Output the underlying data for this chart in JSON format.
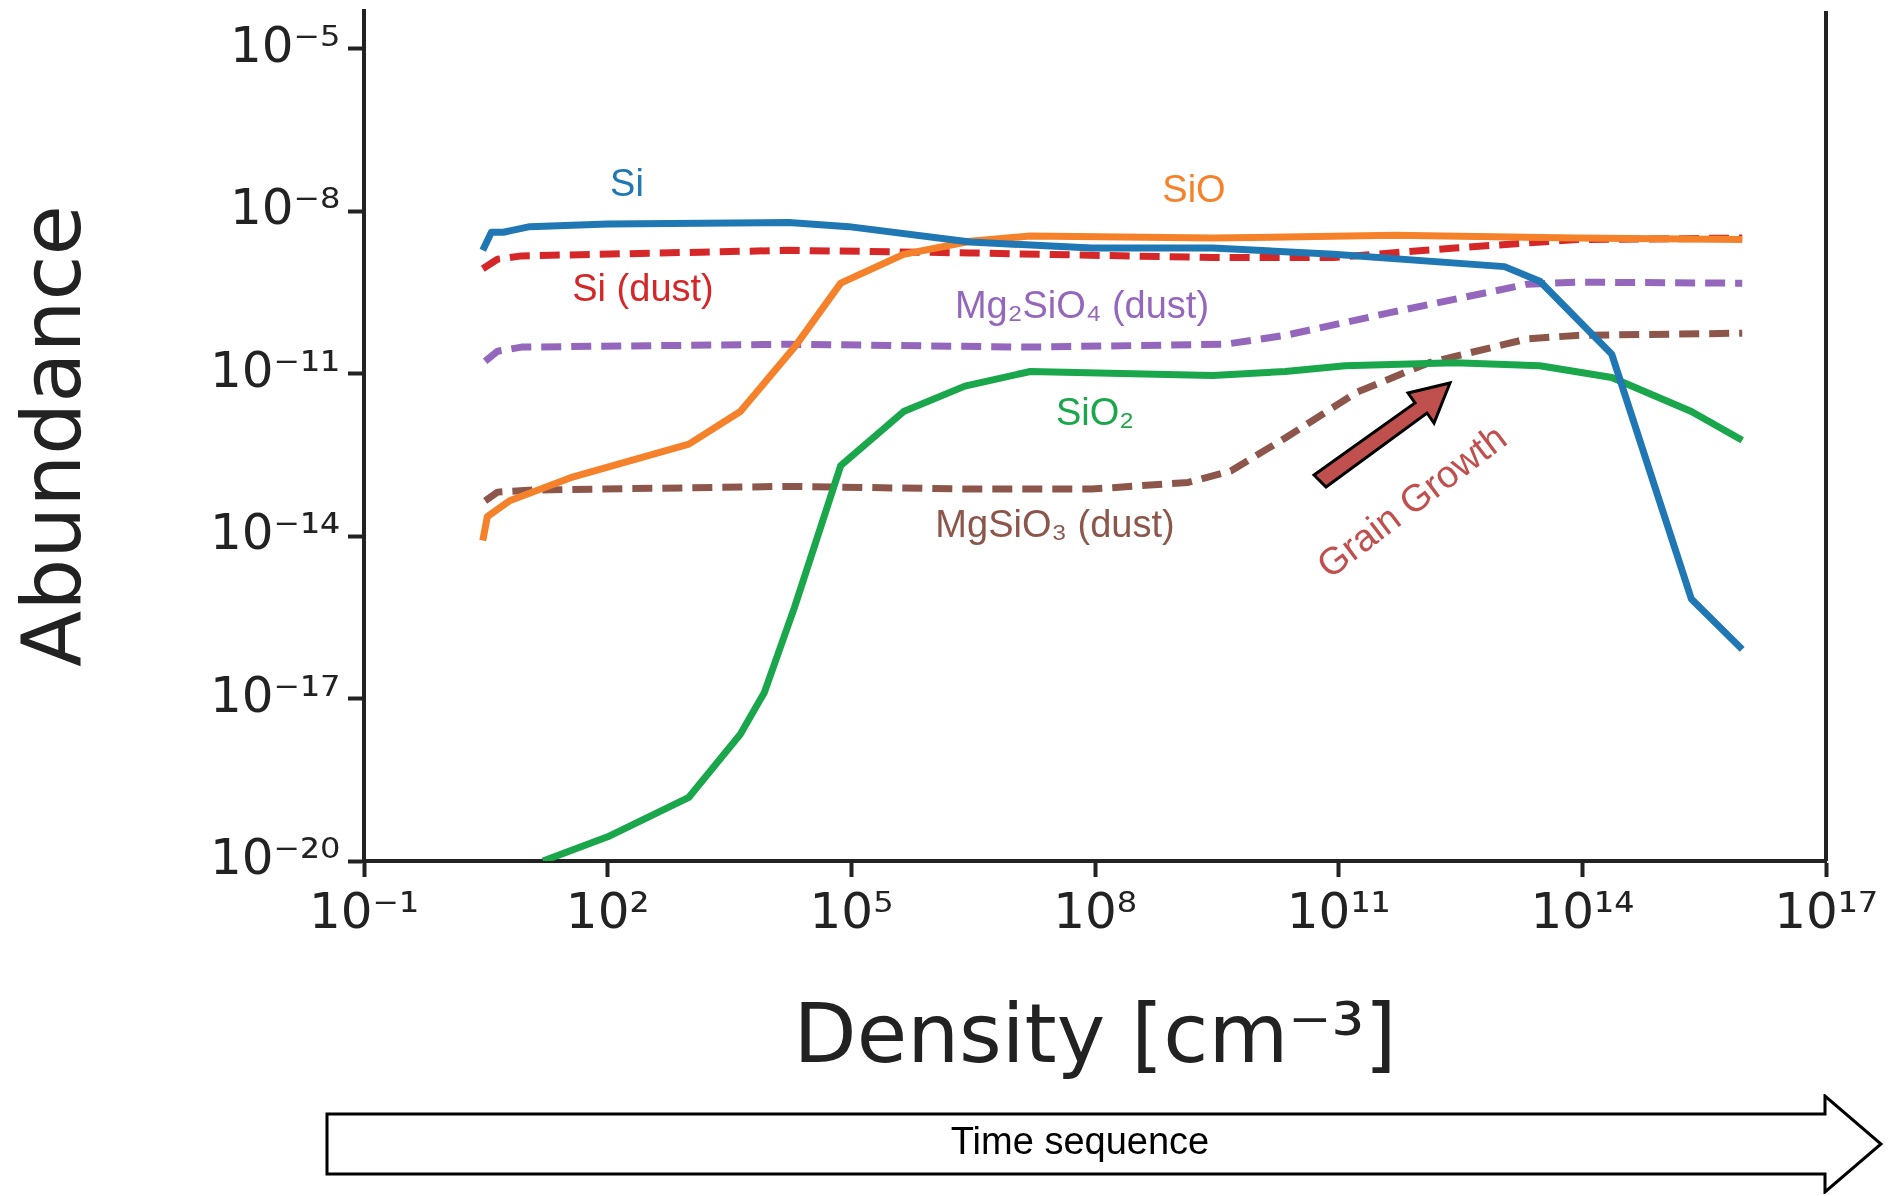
{
  "chart_data": {
    "type": "line",
    "xlabel": "Density [cm⁻³]",
    "ylabel": "Abundance",
    "log": "xy",
    "grid": false,
    "legend": false,
    "marker": "none",
    "xlim": [
      0.1,
      1e+17
    ],
    "xticks": [
      {
        "value": 0.1,
        "label": "10⁻¹"
      },
      {
        "value": 100,
        "label": "10²"
      },
      {
        "value": 100000,
        "label": "10⁵"
      },
      {
        "value": 100000000.0,
        "label": "10⁸"
      },
      {
        "value": 100000000000.0,
        "label": "10¹¹"
      },
      {
        "value": 100000000000000.0,
        "label": "10¹⁴"
      },
      {
        "value": 1e+17,
        "label": "10¹⁷"
      }
    ],
    "ylim": [
      1e-20,
      5e-05
    ],
    "yticks": [
      {
        "value": 1e-20,
        "label": "10⁻²⁰"
      },
      {
        "value": 1e-17,
        "label": "10⁻¹⁷"
      },
      {
        "value": 1e-14,
        "label": "10⁻¹⁴"
      },
      {
        "value": 1e-11,
        "label": "10⁻¹¹"
      },
      {
        "value": 1e-08,
        "label": "10⁻⁸"
      },
      {
        "value": 1e-05,
        "label": "10⁻⁵"
      }
    ],
    "series": [
      {
        "name": "Si",
        "color": "#1f77b4",
        "line_style": "solid",
        "x": [
          2.9,
          3.7,
          5.2,
          11,
          100,
          17000,
          93000,
          2900000.0,
          91000000.0,
          2800000000.0,
          87000000000.0,
          11000000000000.0,
          30000000000000.0,
          230000000000000.0,
          2200000000000000.0,
          9300000000000000.0
        ],
        "values": [
          1.9e-09,
          4.1e-09,
          4.1e-09,
          5.2e-09,
          5.8e-09,
          6.2e-09,
          5.2e-09,
          2.7e-09,
          2.1e-09,
          2.1e-09,
          1.6e-09,
          9.5e-10,
          5.1e-10,
          2.3e-11,
          6.9e-16,
          8.1e-17
        ]
      },
      {
        "name": "SiO",
        "color": "#f5822a",
        "line_style": "solid",
        "x": [
          2.9,
          3.3,
          6.2,
          35,
          1000,
          4300,
          20000,
          74000,
          440000,
          2900000.0,
          16000000.0,
          2800000000.0,
          490000000000.0,
          85000000000000.0,
          9300000000000000.0
        ],
        "values": [
          8.3e-15,
          2.3e-14,
          4.5e-14,
          1.2e-13,
          5e-13,
          2e-12,
          3.1e-11,
          4.7e-10,
          1.6e-09,
          2.8e-09,
          3.5e-09,
          3.2e-09,
          3.6e-09,
          3.2e-09,
          3e-09
        ]
      },
      {
        "name": "Si (dust)",
        "color": "#d62728",
        "line_style": "dashed",
        "x": [
          2.9,
          4.4,
          8.7,
          17000,
          2900000.0,
          2800000000.0,
          87000000000.0,
          2700000000000.0,
          85000000000000.0,
          9300000000000000.0
        ],
        "values": [
          8.7e-10,
          1.3e-09,
          1.5e-09,
          1.9e-09,
          1.7e-09,
          1.4e-09,
          1.4e-09,
          2.1e-09,
          3e-09,
          3.2e-09
        ]
      },
      {
        "name": "Mg₂SiO₄ (dust)",
        "color": "#9467bd",
        "line_style": "dashed",
        "x": [
          3.1,
          4.4,
          8.7,
          17000,
          16000000.0,
          4000000000.0,
          22000000000.0,
          490000000000.0,
          21000000000000.0,
          85000000000000.0,
          9300000000000000.0
        ],
        "values": [
          1.7e-11,
          2.6e-11,
          3.1e-11,
          3.5e-11,
          3.1e-11,
          3.5e-11,
          5.1e-11,
          1.4e-10,
          4.5e-10,
          4.9e-10,
          4.7e-10
        ]
      },
      {
        "name": "SiO₂",
        "color": "#1aa64a",
        "line_style": "solid",
        "x": [
          16,
          100,
          1000,
          4300,
          8500,
          20000,
          74000,
          440000,
          2500000.0,
          16000000.0,
          2800000000.0,
          22000000000.0,
          120000000000.0,
          2700000000000.0,
          30000000000000.0,
          230000000000000.0,
          2200000000000000.0,
          9300000000000000.0
        ],
        "values": [
          1e-20,
          2.8e-20,
          1.5e-19,
          2.2e-18,
          1.3e-17,
          4.9e-16,
          2e-13,
          2e-12,
          5.9e-12,
          1.1e-11,
          9.3e-12,
          1.1e-11,
          1.4e-11,
          1.6e-11,
          1.4e-11,
          8.5e-12,
          2e-12,
          5.9e-13
        ]
      },
      {
        "name": "MgSiO₃ (dust)",
        "color": "#8c564b",
        "line_style": "dashed",
        "x": [
          3.1,
          4.4,
          12,
          17000,
          2900000.0,
          91000000.0,
          1400000000.0,
          4700000000.0,
          22000000000.0,
          170000000000.0,
          1300000000000.0,
          21000000000000.0,
          85000000000000.0,
          9300000000000000.0
        ],
        "values": [
          4.5e-14,
          6.5e-14,
          7.1e-14,
          8.3e-14,
          7.4e-14,
          7.4e-14,
          9.8e-14,
          1.6e-13,
          6.5e-13,
          4.6e-12,
          1.6e-11,
          4.4e-11,
          5.1e-11,
          5.6e-11
        ]
      }
    ],
    "annotations": [
      "Grain Growth",
      "Time sequence"
    ]
  }
}
